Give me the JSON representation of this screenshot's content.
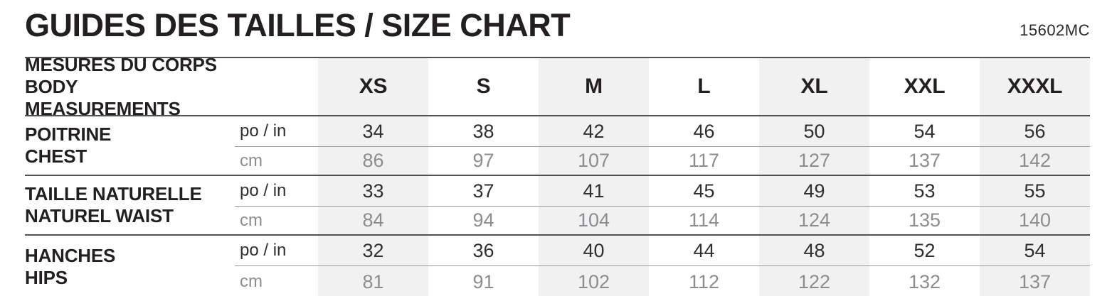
{
  "header": {
    "title": "GUIDES DES TAILLES / SIZE CHART",
    "product_code": "15602MC"
  },
  "table": {
    "corner_label_fr": "MESURES DU CORPS",
    "corner_label_en": "BODY MEASUREMENTS",
    "unit_inches_label": "po / in",
    "unit_cm_label": "cm",
    "sizes": [
      "XS",
      "S",
      "M",
      "L",
      "XL",
      "XXL",
      "XXXL"
    ],
    "rows": [
      {
        "label_fr": "POITRINE",
        "label_en": "CHEST",
        "in": [
          "34",
          "38",
          "42",
          "46",
          "50",
          "54",
          "56"
        ],
        "cm": [
          "86",
          "97",
          "107",
          "117",
          "127",
          "137",
          "142"
        ]
      },
      {
        "label_fr": "TAILLE NATURELLE",
        "label_en": "NATUREL WAIST",
        "in": [
          "33",
          "37",
          "41",
          "45",
          "49",
          "53",
          "55"
        ],
        "cm": [
          "84",
          "94",
          "104",
          "114",
          "124",
          "135",
          "140"
        ]
      },
      {
        "label_fr": "HANCHES",
        "label_en": "HIPS",
        "in": [
          "32",
          "36",
          "40",
          "44",
          "48",
          "52",
          "54"
        ],
        "cm": [
          "81",
          "91",
          "102",
          "112",
          "122",
          "132",
          "137"
        ]
      }
    ]
  },
  "colors": {
    "ink": "#231f20",
    "secondary_text": "#8b8d90",
    "column_stripe": "#f1f1f2",
    "rule_strong": "#505154",
    "rule_light": "#98999c"
  }
}
